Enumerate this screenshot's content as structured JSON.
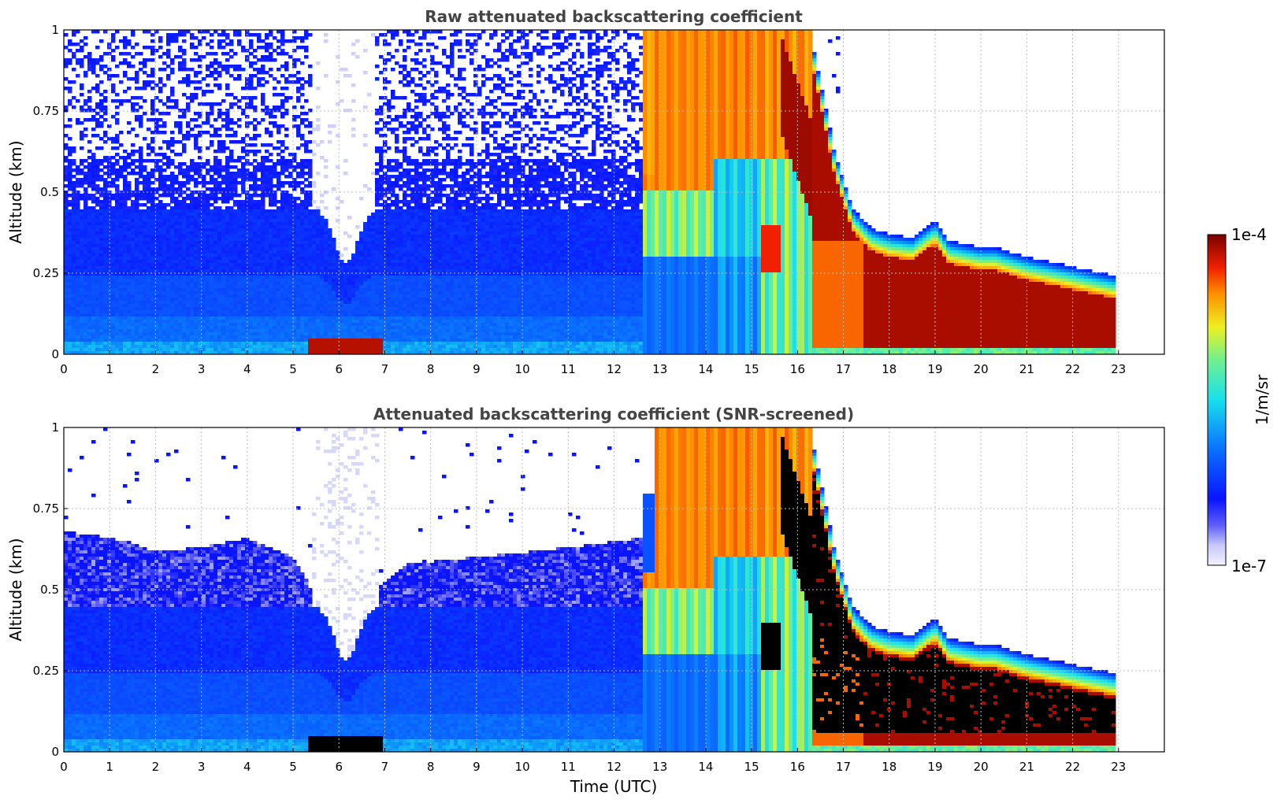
{
  "chart_data": [
    {
      "type": "heatmap",
      "title": "Raw attenuated backscattering coefficient",
      "xlabel": "",
      "ylabel": "Altitude (km)",
      "xlim": [
        0,
        24
      ],
      "ylim": [
        0,
        1
      ],
      "x_ticks": [
        "0",
        "1",
        "2",
        "3",
        "4",
        "5",
        "6",
        "7",
        "8",
        "9",
        "10",
        "11",
        "12",
        "13",
        "14",
        "15",
        "16",
        "17",
        "18",
        "19",
        "20",
        "21",
        "22",
        "23"
      ],
      "y_ticks": [
        "0",
        "0.25",
        "0.5",
        "0.75",
        "1"
      ],
      "grid": true,
      "variant": "raw"
    },
    {
      "type": "heatmap",
      "title": "Attenuated backscattering coefficient (SNR-screened)",
      "xlabel": "Time (UTC)",
      "ylabel": "Altitude (km)",
      "xlim": [
        0,
        24
      ],
      "ylim": [
        0,
        1
      ],
      "x_ticks": [
        "0",
        "1",
        "2",
        "3",
        "4",
        "5",
        "6",
        "7",
        "8",
        "9",
        "10",
        "11",
        "12",
        "13",
        "14",
        "15",
        "16",
        "17",
        "18",
        "19",
        "20",
        "21",
        "22",
        "23"
      ],
      "y_ticks": [
        "0",
        "0.25",
        "0.5",
        "0.75",
        "1"
      ],
      "grid": true,
      "variant": "screened"
    }
  ],
  "colorbar": {
    "label": "1/m/sr",
    "max_label": "1e-4",
    "min_label": "1e-7",
    "scale": "log",
    "range": [
      1e-07,
      0.0001
    ],
    "colormap": "jet-like with white/lavender low end"
  },
  "colors": {
    "low": "#e8e8fb",
    "blue": "#1030ff",
    "cyan": "#20e0f0",
    "yellow": "#f0f020",
    "orange": "#ff8000",
    "red": "#e01000",
    "dark_red": "#800000",
    "saturated_screened": "#000000"
  }
}
